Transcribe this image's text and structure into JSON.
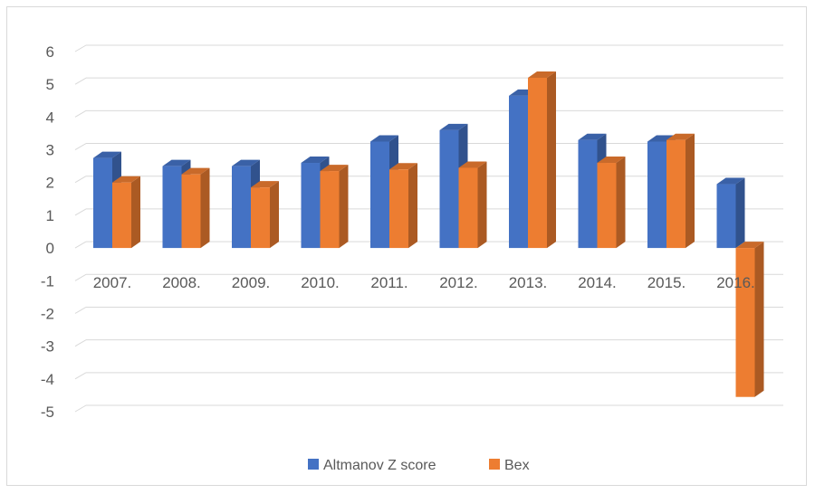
{
  "chart_data": {
    "type": "bar",
    "categories": [
      "2007.",
      "2008.",
      "2009.",
      "2010.",
      "2011.",
      "2012.",
      "2013.",
      "2014.",
      "2015.",
      "2016."
    ],
    "series": [
      {
        "name": "Altmanov Z score",
        "color": "#4472C4",
        "values": [
          2.75,
          2.5,
          2.5,
          2.6,
          3.25,
          3.6,
          4.65,
          3.3,
          3.25,
          1.95
        ]
      },
      {
        "name": "Bex",
        "color": "#ED7D31",
        "values": [
          2.0,
          2.25,
          1.85,
          2.35,
          2.4,
          2.45,
          5.2,
          2.6,
          3.3,
          -4.55
        ]
      }
    ],
    "yticks": [
      "6",
      "5",
      "4",
      "3",
      "2",
      "1",
      "0",
      "-1",
      "-2",
      "-3",
      "-4",
      "-5"
    ],
    "ylim": [
      -5,
      6
    ],
    "grid": true,
    "three_d": true,
    "legend_position": "bottom"
  }
}
